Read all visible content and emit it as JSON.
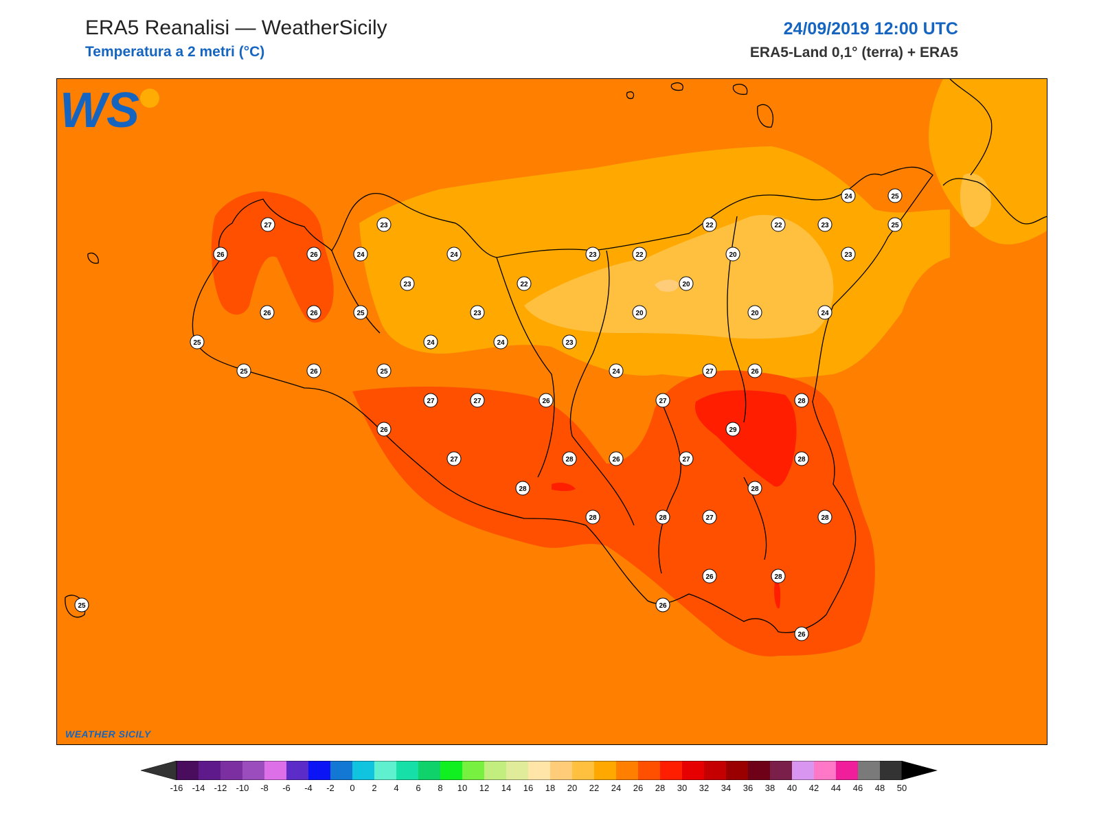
{
  "header": {
    "title": "ERA5 Reanalisi — WeatherSicily",
    "subtitle": "Temperatura a 2 metri (°C)",
    "datetime": "24/09/2019 12:00 UTC",
    "source": "ERA5-Land 0,1° (terra) + ERA5"
  },
  "logo": {
    "letters": "WS",
    "name": "WEATHER SICILY"
  },
  "map": {
    "variable": "2m temperature",
    "units": "°C",
    "background_color": "#ff7f00",
    "station_values": [
      {
        "id": "s1",
        "value": "27"
      },
      {
        "id": "s2",
        "value": "26"
      },
      {
        "id": "s3",
        "value": "26"
      },
      {
        "id": "s4",
        "value": "24"
      },
      {
        "id": "s5",
        "value": "23"
      },
      {
        "id": "s6",
        "value": "24"
      },
      {
        "id": "s7",
        "value": "23"
      },
      {
        "id": "s8",
        "value": "22"
      },
      {
        "id": "s9",
        "value": "23"
      },
      {
        "id": "s10",
        "value": "22"
      },
      {
        "id": "s11",
        "value": "22"
      },
      {
        "id": "s12",
        "value": "20"
      },
      {
        "id": "s13",
        "value": "22"
      },
      {
        "id": "s14",
        "value": "23"
      },
      {
        "id": "s15",
        "value": "24"
      },
      {
        "id": "s16",
        "value": "25"
      },
      {
        "id": "s17",
        "value": "25"
      },
      {
        "id": "s18",
        "value": "23"
      },
      {
        "id": "s19",
        "value": "20"
      },
      {
        "id": "s20",
        "value": "26"
      },
      {
        "id": "s21",
        "value": "26"
      },
      {
        "id": "s22",
        "value": "25"
      },
      {
        "id": "s23",
        "value": "23"
      },
      {
        "id": "s24",
        "value": "20"
      },
      {
        "id": "s25",
        "value": "20"
      },
      {
        "id": "s26",
        "value": "24"
      },
      {
        "id": "s27",
        "value": "25"
      },
      {
        "id": "s28",
        "value": "24"
      },
      {
        "id": "s29",
        "value": "24"
      },
      {
        "id": "s30",
        "value": "23"
      },
      {
        "id": "s31",
        "value": "25"
      },
      {
        "id": "s32",
        "value": "26"
      },
      {
        "id": "s33",
        "value": "25"
      },
      {
        "id": "s34",
        "value": "24"
      },
      {
        "id": "s35",
        "value": "27"
      },
      {
        "id": "s36",
        "value": "26"
      },
      {
        "id": "s37",
        "value": "27"
      },
      {
        "id": "s38",
        "value": "27"
      },
      {
        "id": "s39",
        "value": "26"
      },
      {
        "id": "s40",
        "value": "27"
      },
      {
        "id": "s41",
        "value": "28"
      },
      {
        "id": "s42",
        "value": "26"
      },
      {
        "id": "s43",
        "value": "29"
      },
      {
        "id": "s44",
        "value": "27"
      },
      {
        "id": "s45",
        "value": "28"
      },
      {
        "id": "s46",
        "value": "27"
      },
      {
        "id": "s47",
        "value": "28"
      },
      {
        "id": "s48",
        "value": "28"
      },
      {
        "id": "s49",
        "value": "28"
      },
      {
        "id": "s50",
        "value": "28"
      },
      {
        "id": "s51",
        "value": "28"
      },
      {
        "id": "s52",
        "value": "27"
      },
      {
        "id": "s53",
        "value": "28"
      },
      {
        "id": "s54",
        "value": "26"
      },
      {
        "id": "s55",
        "value": "28"
      },
      {
        "id": "s56",
        "value": "26"
      },
      {
        "id": "s57",
        "value": "26"
      },
      {
        "id": "s58",
        "value": "25"
      },
      {
        "id": "s59",
        "value": "26"
      }
    ]
  },
  "colorbar": {
    "ticks": [
      "-16",
      "-14",
      "-12",
      "-10",
      "-8",
      "-6",
      "-4",
      "-2",
      "0",
      "2",
      "4",
      "6",
      "8",
      "10",
      "12",
      "14",
      "16",
      "18",
      "20",
      "22",
      "24",
      "26",
      "28",
      "30",
      "32",
      "34",
      "36",
      "38",
      "40",
      "42",
      "44",
      "46",
      "48",
      "50"
    ],
    "colors": [
      "#4a0d5e",
      "#5e1a8a",
      "#7b2fa0",
      "#9c4dbd",
      "#dd6fe8",
      "#5b2cc7",
      "#0a14f5",
      "#1278d4",
      "#10c4e0",
      "#5ff0d0",
      "#16e0a8",
      "#10d26a",
      "#10f020",
      "#78f040",
      "#c2ee80",
      "#e0ec9a",
      "#ffe6a8",
      "#ffcc7a",
      "#ffc040",
      "#ffa800",
      "#ff7f00",
      "#ff5000",
      "#ff1e00",
      "#e60000",
      "#c40000",
      "#9a0000",
      "#6e0018",
      "#7a1f4a",
      "#d896f0",
      "#ff78c8",
      "#f01e9a",
      "#7a7a7a",
      "#333333"
    ],
    "under_color": "#333333",
    "over_color": "#000000"
  }
}
